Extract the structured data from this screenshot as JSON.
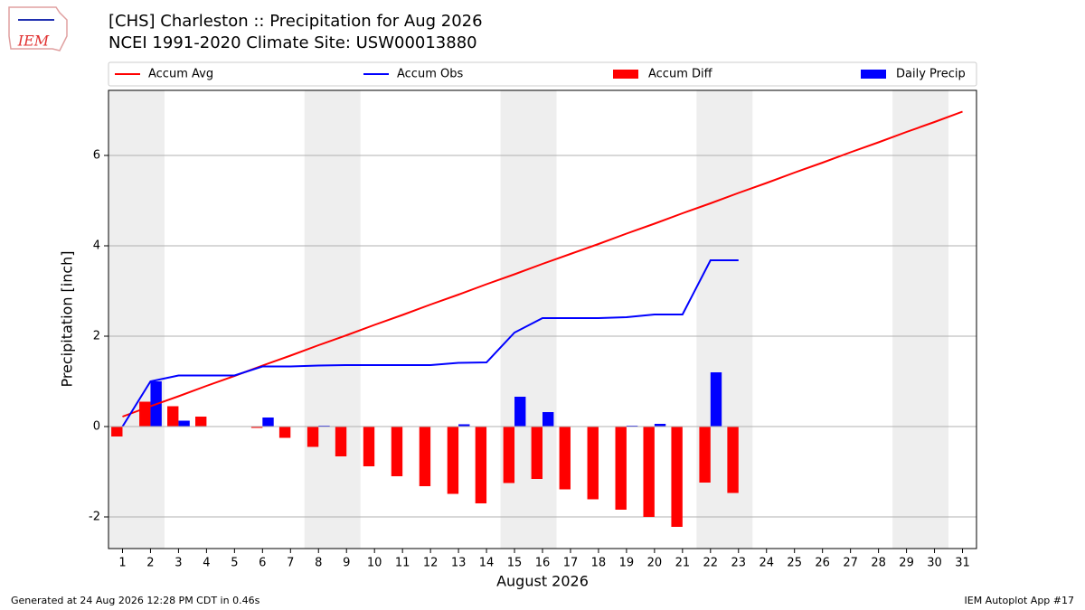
{
  "logo": "IEM",
  "footer": {
    "left": "Generated at 24 Aug 2026 12:28 PM CDT in 0.46s",
    "right": "IEM Autoplot App #17"
  },
  "chart_data": {
    "type": "combo",
    "title": "[CHS] Charleston :: Precipitation for Aug 2026",
    "subtitle": "NCEI 1991-2020 Climate Site: USW00013880",
    "xlabel": "August 2026",
    "ylabel": "Precipitation [inch]",
    "x": [
      1,
      2,
      3,
      4,
      5,
      6,
      7,
      8,
      9,
      10,
      11,
      12,
      13,
      14,
      15,
      16,
      17,
      18,
      19,
      20,
      21,
      22,
      23,
      24,
      25,
      26,
      27,
      28,
      29,
      30,
      31
    ],
    "series": [
      {
        "name": "Accum Avg",
        "type": "line",
        "color": "#ff0000",
        "values": [
          0.22,
          0.45,
          0.67,
          0.9,
          1.12,
          1.35,
          1.57,
          1.8,
          2.02,
          2.25,
          2.47,
          2.7,
          2.92,
          3.15,
          3.37,
          3.6,
          3.82,
          4.04,
          4.27,
          4.49,
          4.72,
          4.94,
          5.17,
          5.39,
          5.62,
          5.84,
          6.07,
          6.29,
          6.52,
          6.74,
          6.97
        ]
      },
      {
        "name": "Accum Obs",
        "type": "line",
        "color": "#0000ff",
        "values": [
          0.0,
          1.0,
          1.13,
          1.13,
          1.13,
          1.33,
          1.33,
          1.35,
          1.36,
          1.36,
          1.36,
          1.36,
          1.41,
          1.42,
          2.08,
          2.4,
          2.4,
          2.4,
          2.42,
          2.48,
          2.48,
          3.68,
          3.68,
          null,
          null,
          null,
          null,
          null,
          null,
          null,
          null
        ]
      },
      {
        "name": "Accum Diff",
        "type": "bar",
        "color": "#ff0000",
        "values": [
          -0.22,
          0.55,
          0.45,
          0.22,
          -0.01,
          -0.03,
          -0.25,
          -0.45,
          -0.66,
          -0.88,
          -1.1,
          -1.32,
          -1.49,
          -1.7,
          -1.25,
          -1.16,
          -1.39,
          -1.61,
          -1.84,
          -2.0,
          -2.22,
          -1.24,
          -1.47,
          null,
          null,
          null,
          null,
          null,
          null,
          null,
          null
        ]
      },
      {
        "name": "Daily Precip",
        "type": "bar",
        "color": "#0000ff",
        "values": [
          0,
          1.0,
          0.13,
          0,
          0,
          0.2,
          0,
          0.02,
          0,
          0,
          0,
          0,
          0.05,
          0.01,
          0.66,
          0.32,
          0,
          0,
          0.02,
          0.06,
          0,
          1.2,
          0,
          null,
          null,
          null,
          null,
          null,
          null,
          null,
          null
        ]
      }
    ],
    "shaded_spans": [
      [
        0.5,
        2.5
      ],
      [
        7.5,
        9.5
      ],
      [
        14.5,
        16.5
      ],
      [
        21.5,
        23.5
      ],
      [
        28.5,
        30.5
      ]
    ],
    "shade_color": "#eeeeee",
    "xlim": [
      0.5,
      31.5
    ],
    "xticks": [
      1,
      2,
      3,
      4,
      5,
      6,
      7,
      8,
      9,
      10,
      11,
      12,
      13,
      14,
      15,
      16,
      17,
      18,
      19,
      20,
      21,
      22,
      23,
      24,
      25,
      26,
      27,
      28,
      29,
      30,
      31
    ],
    "ylim": [
      -2.7,
      7.44
    ],
    "yticks": [
      -2,
      0,
      2,
      4,
      6
    ],
    "grid": true,
    "legend": "top"
  }
}
